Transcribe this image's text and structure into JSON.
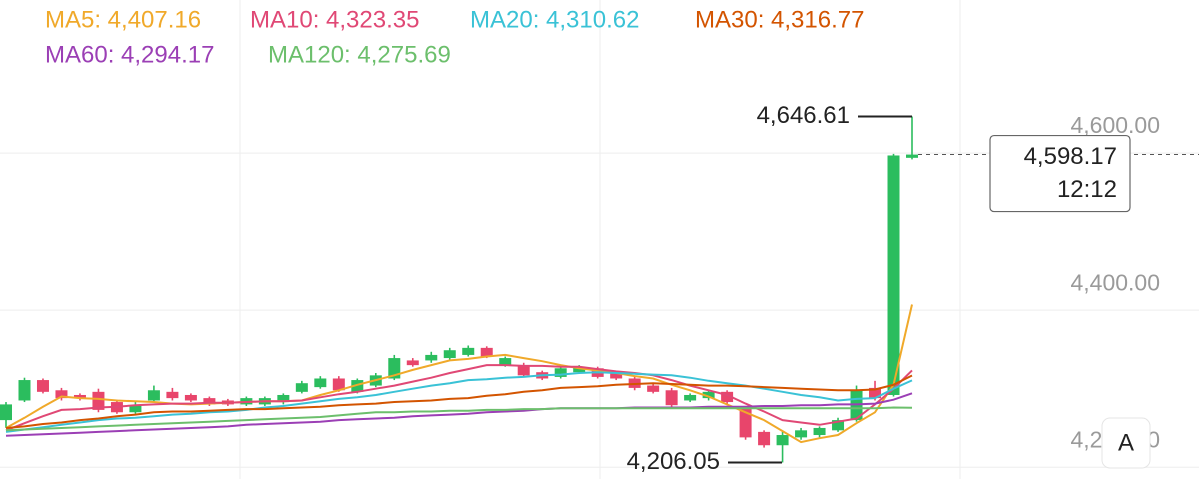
{
  "chart_data": {
    "type": "candlestick",
    "ylim": [
      4185,
      4795
    ],
    "yticks": [
      {
        "value": 4200,
        "label": "4,200.00"
      },
      {
        "value": 4400,
        "label": "4,400.00"
      },
      {
        "value": 4600,
        "label": "4,600.00"
      }
    ],
    "grid": true,
    "up_color": "#2bbd5e",
    "down_color": "#e8456b",
    "ohlc": [
      [
        4260,
        4283,
        4250,
        4280
      ],
      [
        4285,
        4314,
        4283,
        4311
      ],
      [
        4311,
        4313,
        4294,
        4296
      ],
      [
        4298,
        4301,
        4285,
        4288
      ],
      [
        4292,
        4294,
        4285,
        4288
      ],
      [
        4296,
        4300,
        4270,
        4273
      ],
      [
        4283,
        4286,
        4268,
        4270
      ],
      [
        4270,
        4283,
        4268,
        4279
      ],
      [
        4285,
        4304,
        4283,
        4298
      ],
      [
        4296,
        4301,
        4285,
        4288
      ],
      [
        4292,
        4294,
        4283,
        4285
      ],
      [
        4288,
        4290,
        4278,
        4280
      ],
      [
        4285,
        4287,
        4278,
        4280
      ],
      [
        4280,
        4290,
        4278,
        4288
      ],
      [
        4280,
        4290,
        4278,
        4288
      ],
      [
        4283,
        4294,
        4280,
        4292
      ],
      [
        4296,
        4310,
        4294,
        4307
      ],
      [
        4302,
        4316,
        4300,
        4313
      ],
      [
        4313,
        4316,
        4296,
        4298
      ],
      [
        4296,
        4313,
        4294,
        4311
      ],
      [
        4304,
        4320,
        4302,
        4317
      ],
      [
        4313,
        4343,
        4311,
        4339
      ],
      [
        4336,
        4339,
        4328,
        4330
      ],
      [
        4336,
        4347,
        4333,
        4343
      ],
      [
        4339,
        4352,
        4336,
        4349
      ],
      [
        4343,
        4355,
        4341,
        4352
      ],
      [
        4352,
        4354,
        4339,
        4341
      ],
      [
        4330,
        4341,
        4328,
        4339
      ],
      [
        4330,
        4333,
        4315,
        4317
      ],
      [
        4321,
        4323,
        4311,
        4313
      ],
      [
        4315,
        4328,
        4313,
        4326
      ],
      [
        4321,
        4330,
        4319,
        4328
      ],
      [
        4326,
        4328,
        4313,
        4315
      ],
      [
        4321,
        4323,
        4311,
        4313
      ],
      [
        4313,
        4315,
        4298,
        4301
      ],
      [
        4304,
        4307,
        4294,
        4296
      ],
      [
        4298,
        4301,
        4277,
        4279
      ],
      [
        4285,
        4294,
        4283,
        4292
      ],
      [
        4288,
        4298,
        4285,
        4296
      ],
      [
        4296,
        4298,
        4280,
        4283
      ],
      [
        4275,
        4278,
        4235,
        4238
      ],
      [
        4245,
        4247,
        4225,
        4228
      ],
      [
        4228,
        4245,
        4206.05,
        4241
      ],
      [
        4238,
        4250,
        4235,
        4247
      ],
      [
        4241,
        4252,
        4238,
        4250
      ],
      [
        4247,
        4263,
        4245,
        4260
      ],
      [
        4260,
        4304,
        4258,
        4298
      ],
      [
        4301,
        4310,
        4285,
        4288
      ],
      [
        4292,
        4599,
        4290,
        4597
      ],
      [
        4594,
        4646.61,
        4592,
        4598.17
      ]
    ],
    "series": [
      {
        "name": "MA5",
        "legend_label": "MA5: 4,407.16",
        "color": "#f0a92a",
        "values": [
          4250,
          4263,
          4277,
          4290,
          4288,
          4287,
          4285,
          4284,
          4283,
          4281,
          4280,
          4281,
          4282,
          4283,
          4284,
          4284,
          4285,
          4292,
          4298,
          4305,
          4311,
          4317,
          4324,
          4330,
          4336,
          4338,
          4341,
          4343,
          4339,
          4335,
          4330,
          4326,
          4323,
          4320,
          4316,
          4313,
          4305,
          4298,
          4290,
          4280,
          4270,
          4260,
          4246,
          4232,
          4237,
          4241,
          4256,
          4270,
          4305,
          4407.16
        ]
      },
      {
        "name": "MA10",
        "legend_label": "MA10: 4,323.35",
        "color": "#e04875",
        "values": [
          4247,
          4256,
          4265,
          4273,
          4274,
          4276,
          4277,
          4279,
          4280,
          4281,
          4281,
          4282,
          4282,
          4283,
          4284,
          4284,
          4285,
          4289,
          4293,
          4296,
          4300,
          4304,
          4309,
          4314,
          4320,
          4325,
          4330,
          4330,
          4329,
          4329,
          4328,
          4328,
          4325,
          4322,
          4320,
          4317,
          4311,
          4304,
          4298,
          4292,
          4281,
          4271,
          4260,
          4257,
          4254,
          4258,
          4262,
          4280,
          4300,
          4323.35
        ]
      },
      {
        "name": "MA20",
        "legend_label": "MA20: 4,310.62",
        "color": "#3ac2d6",
        "values": [
          4245,
          4248,
          4251,
          4254,
          4257,
          4260,
          4262,
          4263,
          4265,
          4267,
          4268,
          4270,
          4271,
          4273,
          4276,
          4278,
          4281,
          4284,
          4287,
          4289,
          4292,
          4296,
          4300,
          4304,
          4307,
          4311,
          4312,
          4314,
          4315,
          4317,
          4318,
          4320,
          4321,
          4320,
          4319,
          4318,
          4317,
          4314,
          4310,
          4307,
          4304,
          4300,
          4296,
          4292,
          4289,
          4285,
          4287,
          4288,
          4300,
          4310.62
        ]
      },
      {
        "name": "MA30",
        "legend_label": "MA30: 4,316.77",
        "color": "#d35400",
        "values": [
          4250,
          4252,
          4255,
          4257,
          4260,
          4262,
          4265,
          4267,
          4270,
          4271,
          4271,
          4272,
          4273,
          4274,
          4274,
          4275,
          4276,
          4277,
          4279,
          4280,
          4281,
          4283,
          4284,
          4285,
          4287,
          4288,
          4291,
          4293,
          4296,
          4298,
          4301,
          4302,
          4303,
          4305,
          4306,
          4307,
          4306,
          4305,
          4304,
          4304,
          4303,
          4302,
          4301,
          4300,
          4299,
          4298,
          4298,
          4299,
          4305,
          4316.77
        ]
      },
      {
        "name": "MA60",
        "legend_label": "MA60: 4,294.17",
        "color": "#9b3fb5",
        "values": [
          4240,
          4241,
          4242,
          4243,
          4244,
          4245,
          4246,
          4247,
          4248,
          4249,
          4250,
          4251,
          4252,
          4254,
          4255,
          4256,
          4257,
          4258,
          4260,
          4261,
          4262,
          4263,
          4265,
          4266,
          4267,
          4268,
          4270,
          4271,
          4272,
          4274,
          4275,
          4275,
          4275,
          4275,
          4276,
          4276,
          4276,
          4276,
          4277,
          4277,
          4277,
          4278,
          4278,
          4279,
          4279,
          4280,
          4280,
          4281,
          4286,
          4294.17
        ]
      },
      {
        "name": "MA120",
        "legend_label": "MA120: 4,275.69",
        "color": "#6cbf6c",
        "values": [
          4247,
          4248,
          4249,
          4250,
          4251,
          4252,
          4253,
          4254,
          4255,
          4256,
          4257,
          4258,
          4259,
          4260,
          4261,
          4262,
          4263,
          4264,
          4266,
          4268,
          4270,
          4270,
          4271,
          4271,
          4272,
          4272,
          4273,
          4273,
          4274,
          4274,
          4275,
          4275,
          4275,
          4275,
          4275,
          4275,
          4275,
          4275,
          4275,
          4275,
          4275,
          4275,
          4275,
          4275,
          4275,
          4275,
          4275,
          4275,
          4276,
          4275.69
        ]
      }
    ],
    "high_label": {
      "value": 4646.61,
      "label": "4,646.61"
    },
    "low_label": {
      "value": 4206.05,
      "label": "4,206.05"
    },
    "last_price": {
      "value": 4598.17,
      "label": "4,598.17",
      "time": "12:12"
    },
    "button": "A"
  }
}
